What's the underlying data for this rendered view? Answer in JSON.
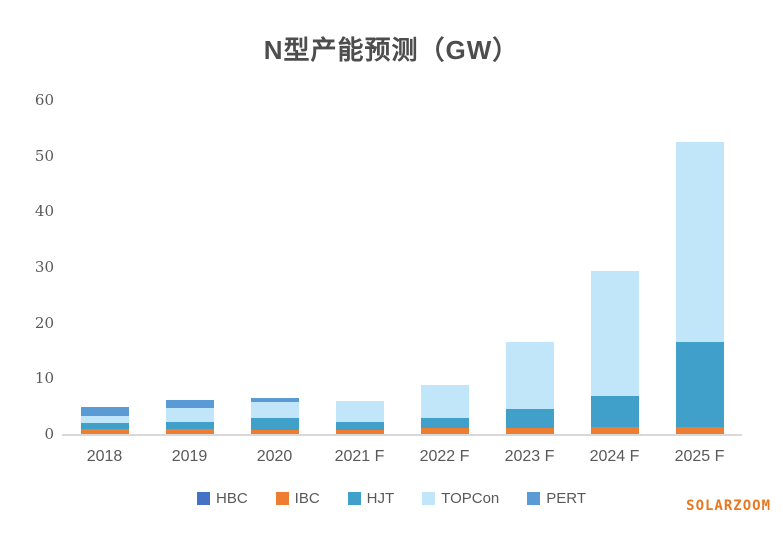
{
  "watermark": "SOLARZOOM",
  "colors": {
    "title_text": "#4d4d4d",
    "axis_text": "#595959",
    "axis_line": "#d9d9d9",
    "watermark": "#e87722",
    "background": "#ffffff"
  },
  "chart_data": {
    "type": "bar",
    "stacked": true,
    "title": "N型产能预测（GW）",
    "xlabel": "",
    "ylabel": "",
    "ylim": [
      0,
      60
    ],
    "yticks": [
      0,
      10,
      20,
      30,
      40,
      50,
      60
    ],
    "grid": false,
    "legend_position": "bottom",
    "categories": [
      "2018",
      "2019",
      "2020",
      "2021 F",
      "2022 F",
      "2023 F",
      "2024 F",
      "2025 F"
    ],
    "series": [
      {
        "name": "HBC",
        "color": "#4472c4",
        "values": [
          0,
          0,
          0,
          0,
          0,
          0,
          0,
          0
        ]
      },
      {
        "name": "IBC",
        "color": "#ed7d31",
        "values": [
          0.9,
          0.9,
          0.8,
          0.8,
          1.0,
          1.1,
          1.2,
          1.3
        ]
      },
      {
        "name": "HJT",
        "color": "#41a0c9",
        "values": [
          1.1,
          1.3,
          2.0,
          1.3,
          1.8,
          3.4,
          5.7,
          15.2
        ]
      },
      {
        "name": "TOPCon",
        "color": "#c1e5f9",
        "values": [
          1.2,
          2.4,
          3.0,
          3.8,
          6.0,
          12.0,
          22.3,
          36.0
        ]
      },
      {
        "name": "PERT",
        "color": "#5b9bd5",
        "values": [
          1.6,
          1.5,
          0.6,
          0,
          0,
          0,
          0,
          0
        ]
      }
    ]
  }
}
